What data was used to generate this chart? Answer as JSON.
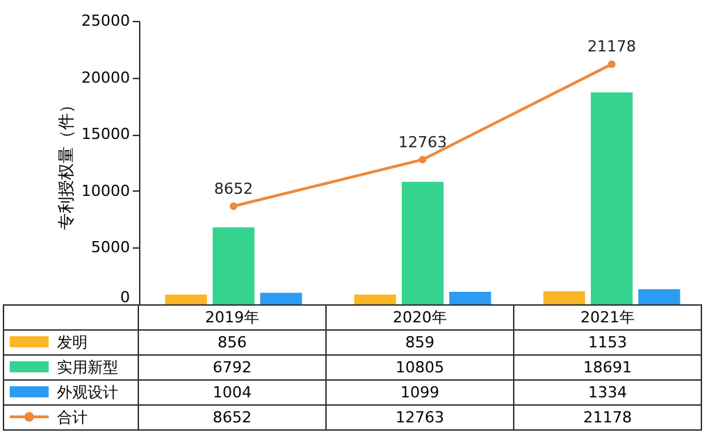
{
  "chart_data": {
    "type": "bar",
    "ylabel": "专利授权量（件）",
    "categories": [
      "2019年",
      "2020年",
      "2021年"
    ],
    "series": [
      {
        "name": "发明",
        "color": "#fbb628",
        "values": [
          856,
          859,
          1153
        ]
      },
      {
        "name": "实用新型",
        "color": "#35d48e",
        "values": [
          6792,
          10805,
          18691
        ]
      },
      {
        "name": "外观设计",
        "color": "#2b9cf2",
        "values": [
          1004,
          1099,
          1334
        ]
      },
      {
        "name": "合计",
        "type": "line",
        "color": "#f0883a",
        "values": [
          8652,
          12763,
          21178
        ]
      }
    ],
    "ylim": [
      0,
      25000
    ],
    "yticks": [
      0,
      5000,
      10000,
      15000,
      20000,
      25000
    ],
    "marker": "circle",
    "data_labels": true,
    "legend": "bottom",
    "annotations": [
      {
        "text": "8652",
        "x": "2019年",
        "y": 8652
      },
      {
        "text": "12763",
        "x": "2020年",
        "y": 12763
      },
      {
        "text": "21178",
        "x": "2021年",
        "y": 21178
      }
    ]
  }
}
